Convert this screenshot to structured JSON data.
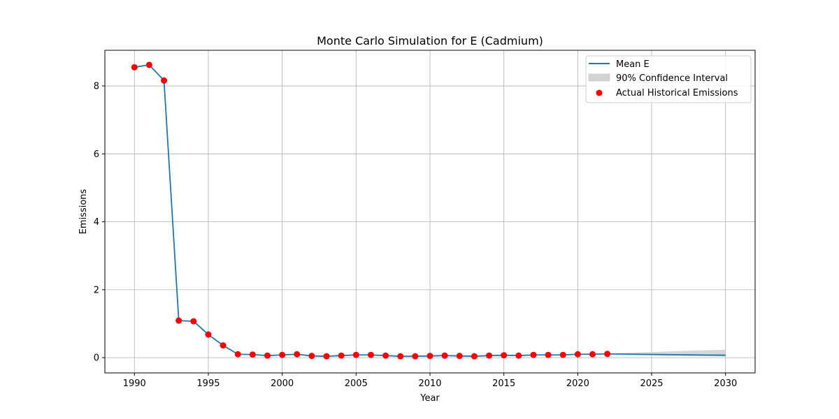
{
  "chart_data": {
    "type": "line",
    "title": "Monte Carlo Simulation for E (Cadmium)",
    "xlabel": "Year",
    "ylabel": "Emissions",
    "xlim": [
      1988,
      2032
    ],
    "ylim": [
      -0.45,
      9.05
    ],
    "xticks": [
      1990,
      1995,
      2000,
      2005,
      2010,
      2015,
      2020,
      2025,
      2030
    ],
    "yticks": [
      0,
      2,
      4,
      6,
      8
    ],
    "grid": true,
    "legend_position": "top-right",
    "series": [
      {
        "name": "Mean E",
        "kind": "line",
        "color": "#1f77b4",
        "x": [
          1990,
          1991,
          1992,
          1993,
          1994,
          1995,
          1996,
          1997,
          1998,
          1999,
          2000,
          2001,
          2002,
          2003,
          2004,
          2005,
          2006,
          2007,
          2008,
          2009,
          2010,
          2011,
          2012,
          2013,
          2014,
          2015,
          2016,
          2017,
          2018,
          2019,
          2020,
          2021,
          2022,
          2030
        ],
        "y": [
          8.55,
          8.62,
          8.16,
          1.09,
          1.07,
          0.68,
          0.36,
          0.1,
          0.09,
          0.06,
          0.08,
          0.1,
          0.05,
          0.04,
          0.06,
          0.08,
          0.08,
          0.06,
          0.04,
          0.04,
          0.05,
          0.06,
          0.05,
          0.04,
          0.06,
          0.07,
          0.06,
          0.08,
          0.08,
          0.08,
          0.1,
          0.1,
          0.11,
          0.07
        ]
      },
      {
        "name": "90% Confidence Interval",
        "kind": "band",
        "color": "#d3d3d3",
        "x": [
          2022,
          2024,
          2026,
          2028,
          2030
        ],
        "lower": [
          0.1,
          0.07,
          0.05,
          0.04,
          0.03
        ],
        "upper": [
          0.12,
          0.15,
          0.18,
          0.21,
          0.23
        ]
      },
      {
        "name": "Actual Historical Emissions",
        "kind": "scatter",
        "color": "#ff0000",
        "x": [
          1990,
          1991,
          1992,
          1993,
          1994,
          1995,
          1996,
          1997,
          1998,
          1999,
          2000,
          2001,
          2002,
          2003,
          2004,
          2005,
          2006,
          2007,
          2008,
          2009,
          2010,
          2011,
          2012,
          2013,
          2014,
          2015,
          2016,
          2017,
          2018,
          2019,
          2020,
          2021,
          2022
        ],
        "y": [
          8.55,
          8.62,
          8.16,
          1.09,
          1.07,
          0.68,
          0.36,
          0.1,
          0.09,
          0.06,
          0.08,
          0.1,
          0.05,
          0.04,
          0.06,
          0.08,
          0.08,
          0.06,
          0.04,
          0.04,
          0.05,
          0.06,
          0.05,
          0.04,
          0.06,
          0.07,
          0.06,
          0.08,
          0.08,
          0.08,
          0.1,
          0.1,
          0.11
        ]
      }
    ]
  }
}
